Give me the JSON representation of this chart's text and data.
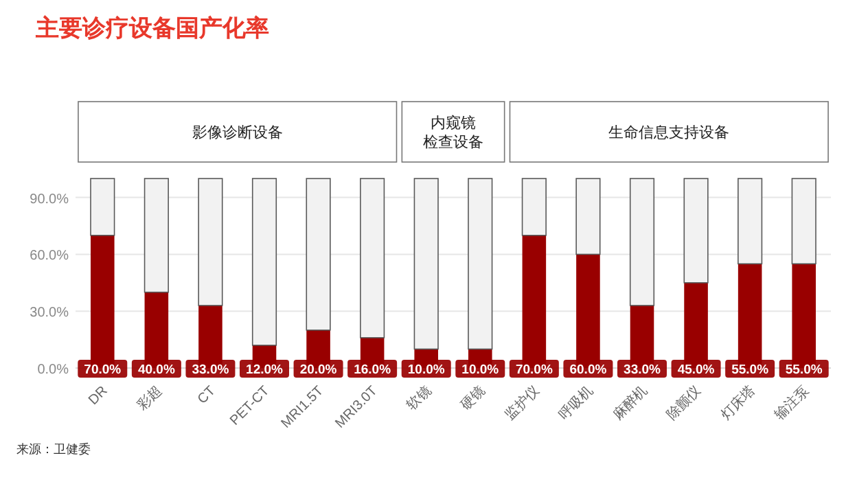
{
  "chart_data": {
    "type": "bar",
    "title": "主要诊疗设备国产化率",
    "categories": [
      "DR",
      "彩超",
      "CT",
      "PET-CT",
      "MRI1.5T",
      "MRI3.0T",
      "软镜",
      "硬镜",
      "监护仪",
      "呼吸机",
      "麻醉机",
      "除颤仪",
      "灯床塔",
      "输注泵"
    ],
    "stacked": true,
    "series": [
      {
        "color": "#990000",
        "values": [
          70,
          40,
          33,
          12,
          20,
          16,
          10,
          10,
          70,
          60,
          33,
          45,
          55,
          55
        ],
        "value_labels": [
          "70.0%",
          "40.0%",
          "33.0%",
          "12.0%",
          "20.0%",
          "16.0%",
          "10.0%",
          "10.0%",
          "70.0%",
          "60.0%",
          "33.0%",
          "45.0%",
          "55.0%",
          "55.0%"
        ]
      },
      {
        "color": "#f2f2f2",
        "values": [
          30,
          60,
          67,
          88,
          80,
          84,
          90,
          90,
          30,
          40,
          67,
          55,
          45,
          45
        ]
      }
    ],
    "ylim": [
      0,
      100
    ],
    "yticks": [
      {
        "value": 0,
        "label": "0.0%"
      },
      {
        "value": 30,
        "label": "30.0%"
      },
      {
        "value": 60,
        "label": "60.0%"
      },
      {
        "value": 90,
        "label": "90.0%"
      }
    ],
    "grid": "y",
    "annotations": [
      "影像诊断设备",
      "内窥镜检查设备",
      "生命信息支持设备",
      "来源：卫健委"
    ]
  }
}
